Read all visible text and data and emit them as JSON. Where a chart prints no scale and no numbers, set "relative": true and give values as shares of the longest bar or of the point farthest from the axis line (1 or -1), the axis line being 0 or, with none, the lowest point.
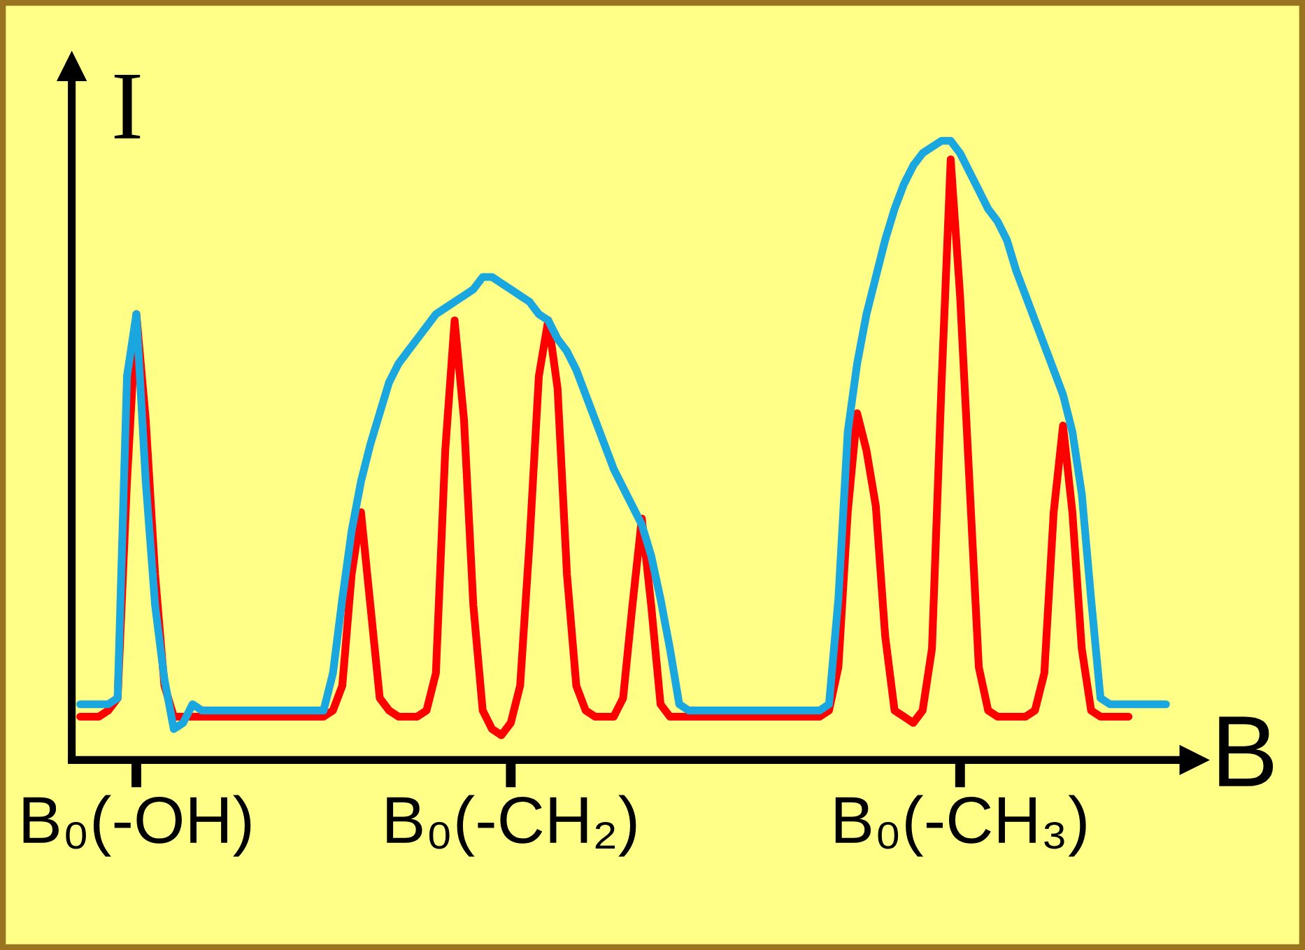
{
  "chart_data": {
    "type": "line",
    "relative": true,
    "xlabel": "B",
    "ylabel": "I",
    "grid": false,
    "marker": "none",
    "line_style": "solid",
    "categories": [
      null,
      null,
      null,
      null,
      null,
      null,
      "B₀(-OH)",
      null,
      null,
      null,
      null,
      null,
      null,
      null,
      null,
      null,
      null,
      null,
      null,
      null,
      null,
      null,
      null,
      null,
      null,
      null,
      null,
      null,
      null,
      null,
      null,
      null,
      null,
      null,
      null,
      null,
      null,
      null,
      null,
      null,
      null,
      null,
      null,
      null,
      null,
      null,
      "B₀(-CH₂)",
      null,
      null,
      null,
      null,
      null,
      null,
      null,
      null,
      null,
      null,
      null,
      null,
      null,
      null,
      null,
      null,
      null,
      null,
      null,
      null,
      null,
      null,
      null,
      null,
      null,
      null,
      null,
      null,
      null,
      null,
      null,
      null,
      null,
      null,
      null,
      null,
      null,
      null,
      null,
      null,
      null,
      null,
      null,
      null,
      null,
      null,
      null,
      "B₀(-CH₃)",
      null,
      null,
      null,
      null,
      null,
      null,
      null,
      null,
      null,
      null,
      null,
      null,
      null,
      null,
      null,
      null,
      null,
      null,
      null,
      null,
      null,
      null
    ],
    "series": [
      {
        "color": "#ff0000",
        "values": [
          0.07,
          0.07,
          0.07,
          0.08,
          0.1,
          0.45,
          0.72,
          0.55,
          0.3,
          0.12,
          0.07,
          0.07,
          0.07,
          0.07,
          0.07,
          0.07,
          0.07,
          0.07,
          0.07,
          0.07,
          0.07,
          0.07,
          0.07,
          0.07,
          0.07,
          0.07,
          0.07,
          0.08,
          0.12,
          0.3,
          0.4,
          0.25,
          0.1,
          0.08,
          0.07,
          0.07,
          0.07,
          0.08,
          0.14,
          0.5,
          0.71,
          0.55,
          0.25,
          0.08,
          0.05,
          0.04,
          0.06,
          0.12,
          0.35,
          0.62,
          0.71,
          0.6,
          0.3,
          0.12,
          0.08,
          0.07,
          0.07,
          0.07,
          0.1,
          0.25,
          0.39,
          0.25,
          0.09,
          0.07,
          0.07,
          0.07,
          0.07,
          0.07,
          0.07,
          0.07,
          0.07,
          0.07,
          0.07,
          0.07,
          0.07,
          0.07,
          0.07,
          0.07,
          0.07,
          0.07,
          0.08,
          0.15,
          0.4,
          0.56,
          0.5,
          0.41,
          0.2,
          0.08,
          0.07,
          0.06,
          0.08,
          0.18,
          0.6,
          0.97,
          0.75,
          0.45,
          0.15,
          0.08,
          0.07,
          0.07,
          0.07,
          0.07,
          0.08,
          0.14,
          0.4,
          0.54,
          0.4,
          0.18,
          0.08,
          0.07,
          0.07,
          0.07,
          0.07,
          null,
          null,
          null,
          null
        ]
      },
      {
        "color": "#1aa7e0",
        "values": [
          0.09,
          0.09,
          0.09,
          0.09,
          0.1,
          0.62,
          0.72,
          0.45,
          0.25,
          0.13,
          0.05,
          0.06,
          0.09,
          0.08,
          0.08,
          0.08,
          0.08,
          0.08,
          0.08,
          0.08,
          0.08,
          0.08,
          0.08,
          0.08,
          0.08,
          0.08,
          0.08,
          0.14,
          0.26,
          0.37,
          0.45,
          0.51,
          0.56,
          0.61,
          0.64,
          0.66,
          0.68,
          0.7,
          0.72,
          0.73,
          0.74,
          0.75,
          0.76,
          0.78,
          0.78,
          0.77,
          0.76,
          0.75,
          0.74,
          0.72,
          0.71,
          0.68,
          0.66,
          0.63,
          0.59,
          0.55,
          0.51,
          0.47,
          0.44,
          0.41,
          0.38,
          0.33,
          0.26,
          0.18,
          0.09,
          0.08,
          0.08,
          0.08,
          0.08,
          0.08,
          0.08,
          0.08,
          0.08,
          0.08,
          0.08,
          0.08,
          0.08,
          0.08,
          0.08,
          0.08,
          0.09,
          0.26,
          0.53,
          0.64,
          0.72,
          0.78,
          0.84,
          0.89,
          0.93,
          0.96,
          0.98,
          0.99,
          1.0,
          1.0,
          0.98,
          0.95,
          0.92,
          0.89,
          0.87,
          0.84,
          0.79,
          0.75,
          0.71,
          0.67,
          0.63,
          0.59,
          0.53,
          0.43,
          0.26,
          0.1,
          0.09,
          0.09,
          0.09,
          0.09,
          0.09,
          0.09,
          0.09
        ]
      }
    ]
  }
}
